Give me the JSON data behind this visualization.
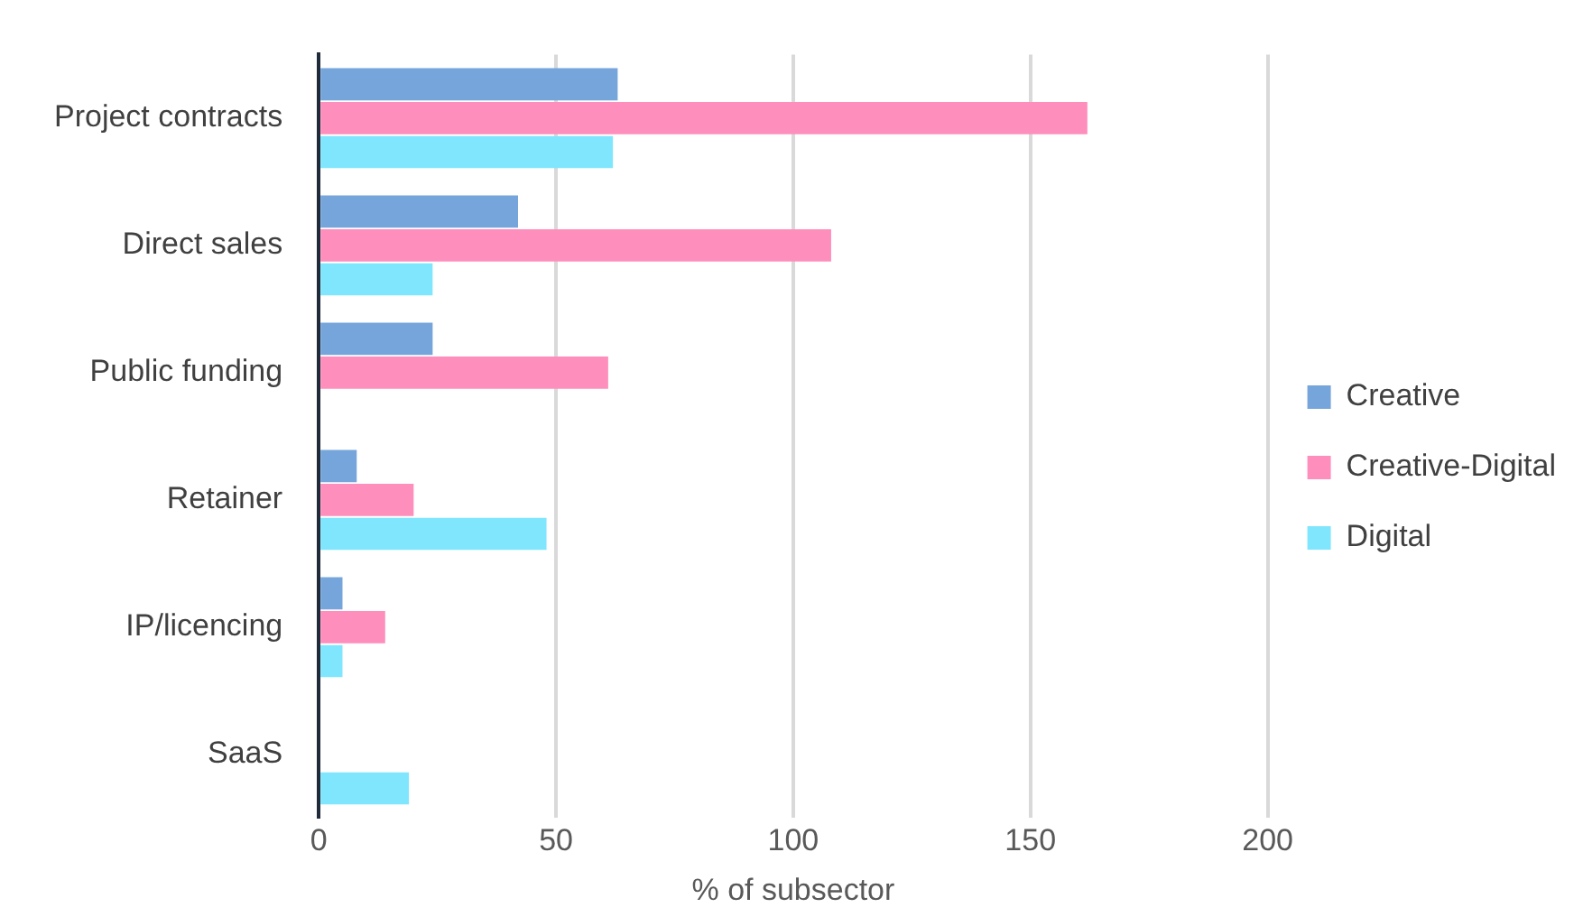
{
  "chart_data": {
    "type": "bar",
    "orientation": "horizontal",
    "xlabel": "% of subsector",
    "categories": [
      "Project contracts",
      "Direct sales",
      "Public funding",
      "Retainer",
      "IP/licencing",
      "SaaS"
    ],
    "series": [
      {
        "name": "Creative",
        "color": "#76a5db",
        "values": [
          63,
          42,
          24,
          8,
          5,
          null
        ]
      },
      {
        "name": "Creative-Digital",
        "color": "#fe8fbd",
        "values": [
          162,
          108,
          61,
          20,
          14,
          null
        ]
      },
      {
        "name": "Digital",
        "color": "#80e6fd",
        "values": [
          62,
          24,
          null,
          48,
          5,
          19
        ]
      }
    ],
    "xlim": [
      0,
      200
    ],
    "xticks": [
      0,
      50,
      100,
      150,
      200
    ],
    "grid": "x",
    "legend": "right"
  }
}
